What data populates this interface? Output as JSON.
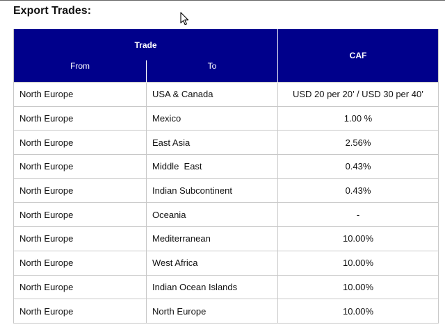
{
  "section": {
    "title": "Export Trades:"
  },
  "table": {
    "header": {
      "trade": "Trade",
      "from": "From",
      "to": "To",
      "caf": "CAF"
    },
    "rows": [
      {
        "from": "North Europe",
        "to": "USA & Canada",
        "caf": "USD 20 per 20’ / USD 30 per 40’"
      },
      {
        "from": "North Europe",
        "to": "Mexico",
        "caf": "1.00 %"
      },
      {
        "from": "North Europe",
        "to": "East Asia",
        "caf": "2.56%"
      },
      {
        "from": "North Europe",
        "to": "Middle  East",
        "caf": "0.43%"
      },
      {
        "from": "North Europe",
        "to": "Indian Subcontinent",
        "caf": "0.43%"
      },
      {
        "from": "North Europe",
        "to": "Oceania",
        "caf": "-"
      },
      {
        "from": "North Europe",
        "to": "Mediterranean",
        "caf": "10.00%"
      },
      {
        "from": "North Europe",
        "to": "West Africa",
        "caf": "10.00%"
      },
      {
        "from": "North Europe",
        "to": "Indian Ocean Islands",
        "caf": "10.00%"
      },
      {
        "from": "North Europe",
        "to": "North Europe",
        "caf": "10.00%"
      }
    ]
  }
}
